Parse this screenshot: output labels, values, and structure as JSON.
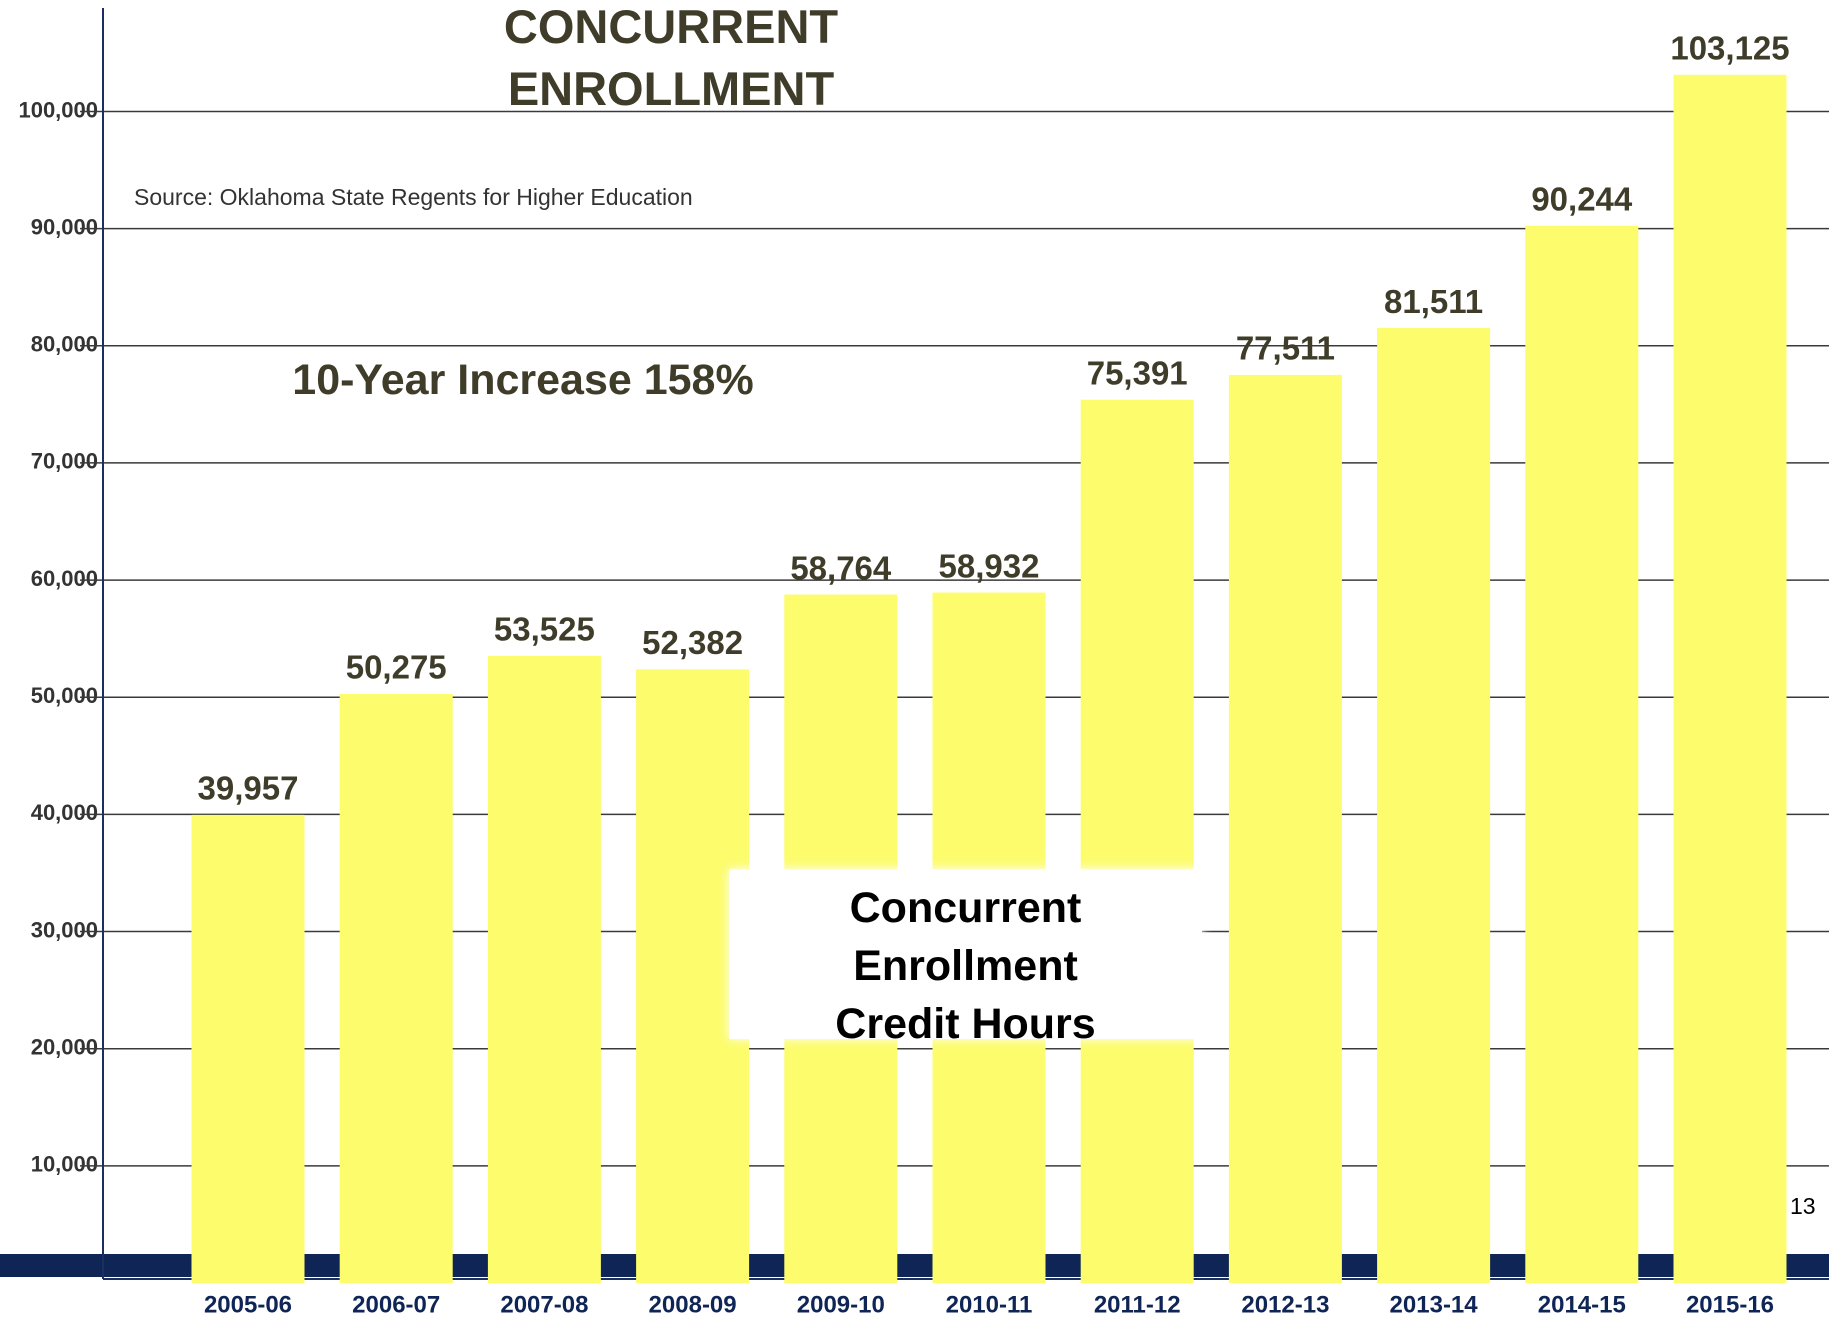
{
  "chart_data": {
    "type": "bar",
    "title": "CONCURRENT ENROLLMENT",
    "subtitle": "Source: Oklahoma State Regents for Higher Education",
    "annotations": [
      "10-Year Increase 158%",
      "Concurrent Enrollment Credit Hours"
    ],
    "page_number": "13",
    "categories": [
      "2005-06",
      "2006-07",
      "2007-08",
      "2008-09",
      "2009-10",
      "2010-11",
      "2011-12",
      "2012-13",
      "2013-14",
      "2014-15",
      "2015-16"
    ],
    "values": [
      39957,
      50275,
      53525,
      52382,
      58764,
      58932,
      75391,
      77511,
      81511,
      90244,
      103125
    ],
    "value_labels": [
      "39,957",
      "50,275",
      "53,525",
      "52,382",
      "58,764",
      "58,932",
      "75,391",
      "77,511",
      "81,511",
      "90,244",
      "103,125"
    ],
    "color": "#fcfc6c",
    "ylim": [
      0,
      109000
    ],
    "yticks": [
      {
        "value": 10000,
        "label": "10,000"
      },
      {
        "value": 20000,
        "label": "20,000"
      },
      {
        "value": 30000,
        "label": "30,000"
      },
      {
        "value": 40000,
        "label": "40,000"
      },
      {
        "value": 50000,
        "label": "50,000"
      },
      {
        "value": 60000,
        "label": "60,000"
      },
      {
        "value": 70000,
        "label": "70,000"
      },
      {
        "value": 80000,
        "label": "80,000"
      },
      {
        "value": 90000,
        "label": "90,000"
      },
      {
        "value": 100000,
        "label": "100,000"
      }
    ],
    "grid": true
  }
}
